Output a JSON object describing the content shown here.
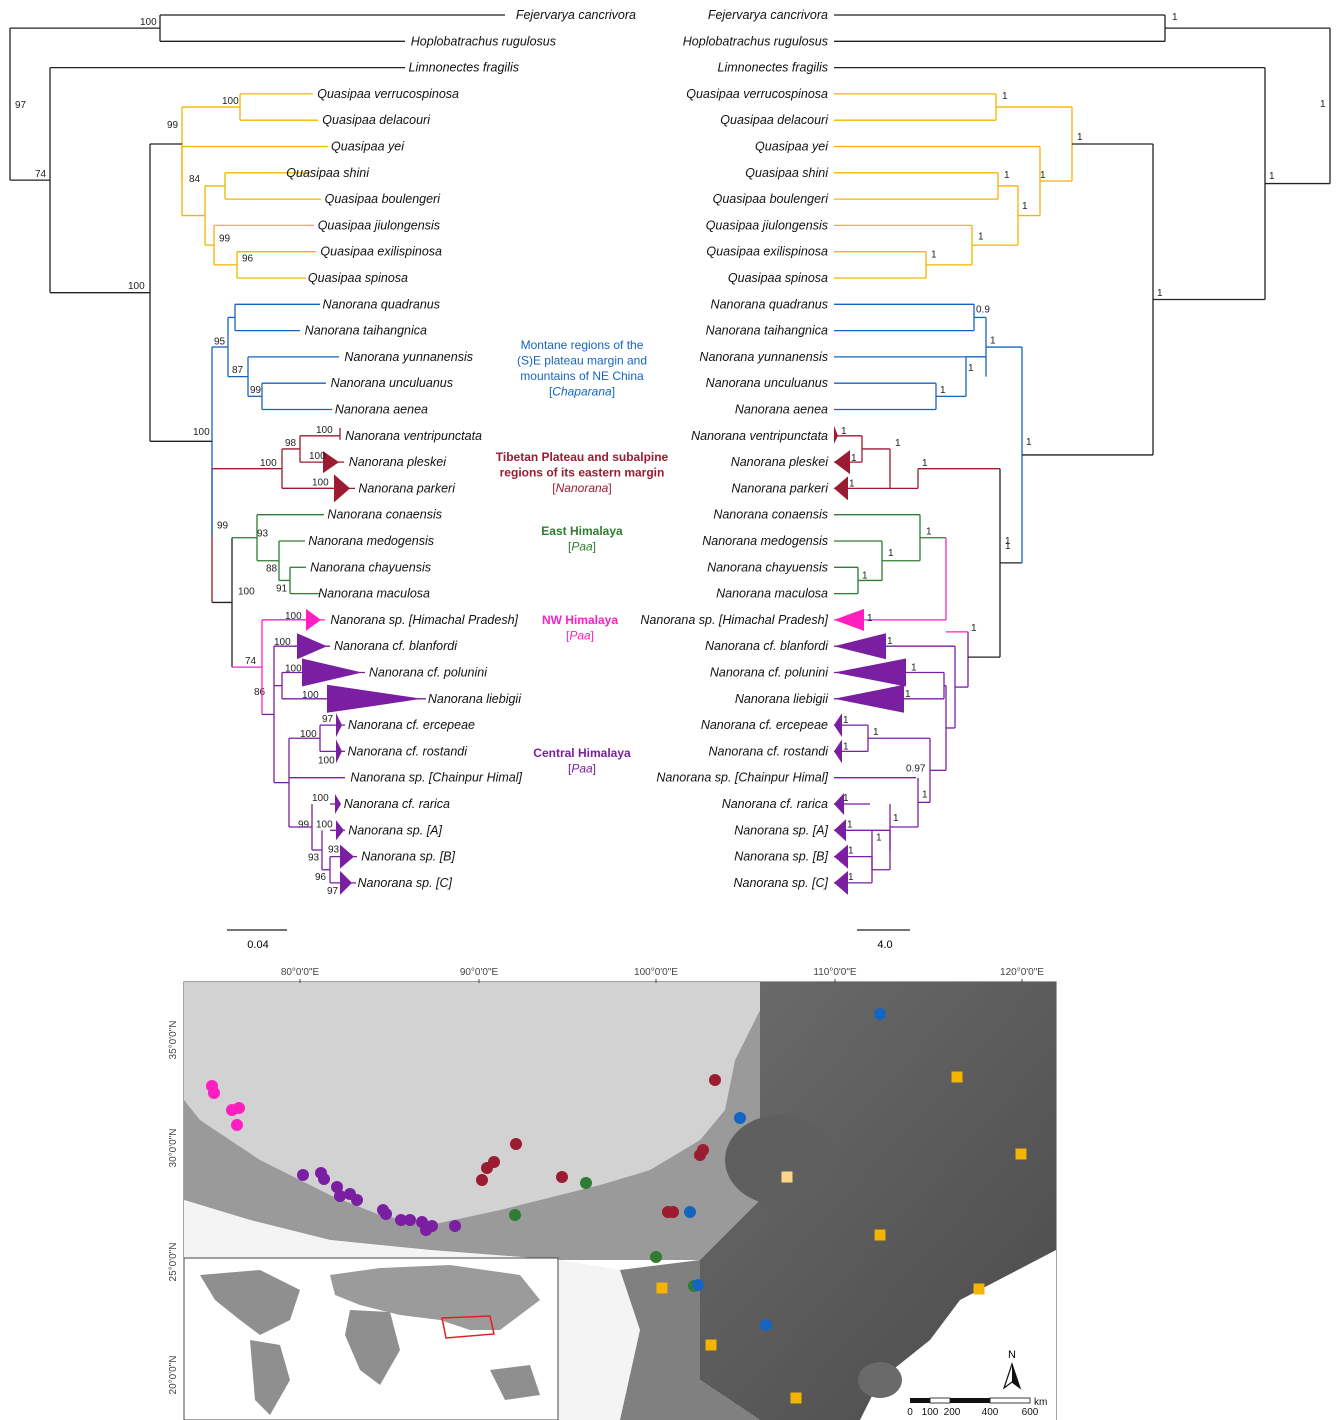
{
  "taxa": [
    {
      "label": "Fejervarya cancrivora",
      "color": "#222222",
      "tri": 0
    },
    {
      "label": "Hoplobatrachus rugulosus",
      "color": "#222222",
      "tri": 0
    },
    {
      "label": "Limnonectes fragilis",
      "color": "#222222",
      "tri": 0
    },
    {
      "label": "Quasipaa verrucospinosa",
      "color": "#f4b400",
      "tri": 0
    },
    {
      "label": "Quasipaa delacouri",
      "color": "#f4b400",
      "tri": 0
    },
    {
      "label": "Quasipaa yei",
      "color": "#f4b400",
      "tri": 0
    },
    {
      "label": "Quasipaa shini",
      "color": "#f4b400",
      "tri": 0
    },
    {
      "label": "Quasipaa boulengeri",
      "color": "#f4b400",
      "tri": 0
    },
    {
      "label": "Quasipaa jiulongensis",
      "color": "#f4b400",
      "tri": 0
    },
    {
      "label": "Quasipaa exilispinosa",
      "color": "#f4b400",
      "tri": 0
    },
    {
      "label": "Quasipaa spinosa",
      "color": "#f4b400",
      "tri": 0
    },
    {
      "label": "Nanorana quadranus",
      "color": "#1565c0",
      "tri": 0
    },
    {
      "label": "Nanorana taihangnica",
      "color": "#1565c0",
      "tri": 0
    },
    {
      "label": "Nanorana yunnanensis",
      "color": "#1565c0",
      "tri": 0
    },
    {
      "label": "Nanorana unculuanus",
      "color": "#1565c0",
      "tri": 0
    },
    {
      "label": "Nanorana aenea",
      "color": "#1565c0",
      "tri": 0
    },
    {
      "label": "Nanorana ventripunctata",
      "color": "#9b1b30",
      "tri": 2
    },
    {
      "label": "Nanorana pleskei",
      "color": "#9b1b30",
      "tri": 10
    },
    {
      "label": "Nanorana parkeri",
      "color": "#9b1b30",
      "tri": 14
    },
    {
      "label": "Nanorana conaensis",
      "color": "#2e7d32",
      "tri": 0
    },
    {
      "label": "Nanorana medogensis",
      "color": "#2e7d32",
      "tri": 0
    },
    {
      "label": "Nanorana chayuensis",
      "color": "#2e7d32",
      "tri": 0
    },
    {
      "label": "Nanorana maculosa",
      "color": "#2e7d32",
      "tri": 0
    },
    {
      "label": "Nanorana sp. [Himachal Pradesh]",
      "color": "#ff1fc0",
      "tri": 18
    },
    {
      "label": "Nanorana cf. blanfordi",
      "color": "#7b1fa2",
      "tri": 30
    },
    {
      "label": "Nanorana cf. polunini",
      "color": "#7b1fa2",
      "tri": 60
    },
    {
      "label": "Nanorana liebigii",
      "color": "#7b1fa2",
      "tri": 95
    },
    {
      "label": "Nanorana cf. ercepeae",
      "color": "#7b1fa2",
      "tri": 6
    },
    {
      "label": "Nanorana cf. rostandi",
      "color": "#7b1fa2",
      "tri": 6
    },
    {
      "label": "Nanorana sp. [Chainpur Himal]",
      "color": "#7b1fa2",
      "tri": 0
    },
    {
      "label": "Nanorana cf. rarica",
      "color": "#7b1fa2",
      "tri": 6
    },
    {
      "label": "Nanorana sp. [A]",
      "color": "#7b1fa2",
      "tri": 8
    },
    {
      "label": "Nanorana sp. [B]",
      "color": "#7b1fa2",
      "tri": 14
    },
    {
      "label": "Nanorana sp. [C]",
      "color": "#7b1fa2",
      "tri": 12
    }
  ],
  "ml_support": [
    "100",
    "97",
    "74",
    "100",
    "99",
    "84",
    "99",
    "96",
    "100",
    "95",
    "87",
    "99",
    "100",
    "98",
    "100",
    "100",
    "100",
    "99",
    "93",
    "88",
    "91",
    "100",
    "100",
    "74",
    "100",
    "86",
    "100",
    "100",
    "97",
    "100",
    "100",
    "99",
    "100",
    "93",
    "93",
    "96",
    "97"
  ],
  "bi_support": [
    "1",
    "1",
    "1",
    "1",
    "1",
    "1",
    "1",
    "1",
    "1",
    "0.9",
    "1",
    "1",
    "1",
    "1",
    "1",
    "1",
    "1",
    "1",
    "1",
    "1",
    "1",
    "1",
    "1",
    "1",
    "1",
    "1",
    "1",
    "1",
    "1",
    "1",
    "1",
    "1",
    "1",
    "1",
    "1",
    "1",
    "1",
    "1",
    "1",
    "1",
    "1",
    "1",
    "0.97",
    "1",
    "1",
    "1",
    "1",
    "1",
    "1"
  ],
  "regions": [
    {
      "lines": [
        "Montane regions of the",
        "(S)E plateau margin and",
        "mountains of NE China"
      ],
      "genus": "Chaparana",
      "color": "#1565c0",
      "bold": false
    },
    {
      "lines": [
        "Tibetan Plateau and subalpine",
        "regions of its eastern margin"
      ],
      "genus": "Nanorana",
      "color": "#9b1b30",
      "bold": true
    },
    {
      "lines": [
        "East Himalaya"
      ],
      "genus": "Paa",
      "color": "#2e7d32",
      "bold": true
    },
    {
      "lines": [
        "NW Himalaya"
      ],
      "genus": "Paa",
      "color": "#ff1fc0",
      "bold": true
    },
    {
      "lines": [
        "Central Himalaya"
      ],
      "genus": "Paa",
      "color": "#7b1fa2",
      "bold": true
    }
  ],
  "scale_bars": {
    "left": "0.04",
    "right": "4.0"
  },
  "map": {
    "lon_labels": [
      "80°0'0\"E",
      "90°0'0\"E",
      "100°0'0\"E",
      "110°0'0\"E",
      "120°0'0\"E"
    ],
    "lat_labels": [
      "35°0'0\"N",
      "30°0'0\"N",
      "25°0'0\"N",
      "20°0'0\"N"
    ],
    "north": "N",
    "km_ticks": [
      "0",
      "100",
      "200",
      "400",
      "600"
    ],
    "km_unit": "km"
  }
}
